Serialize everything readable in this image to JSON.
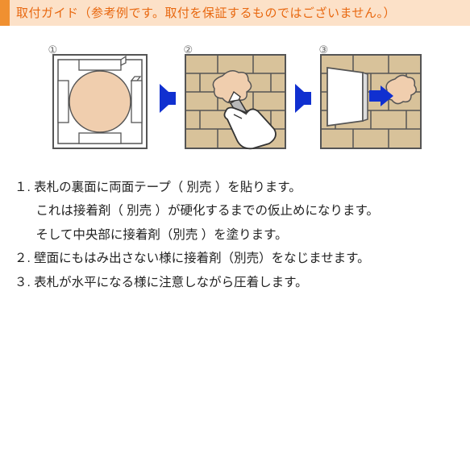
{
  "header": {
    "bar_color": "#f09030",
    "bg_color": "#fce1c8",
    "text_color": "#e86810",
    "text": "取付ガイド（参考例です。取付を保証するものではございません。）"
  },
  "arrow_color": "#1030d0",
  "steps": {
    "labels": [
      "①",
      "②",
      "③"
    ],
    "panel_size": 132,
    "colors": {
      "plate_stroke": "#555555",
      "plate_fill": "#ffffff",
      "adhesive_fill": "#f0ceae",
      "tape_fill": "#ffffff",
      "tape_stroke": "#555555",
      "brick_fill": "#d8c29a",
      "brick_stroke": "#555555",
      "hand_fill": "#ffffff",
      "hand_stroke": "#333333",
      "tube_fill": "#b8b8b8",
      "tube_stroke": "#333333",
      "small_arrow": "#1030d0"
    }
  },
  "instructions": {
    "lines": [
      {
        "num": "１.",
        "text": "表札の裏面に両面テープ（ 別売 ）を貼ります。"
      },
      {
        "indent": true,
        "text": "これは接着剤（ 別売 ）が硬化するまでの仮止めになります。"
      },
      {
        "indent": true,
        "text": "そして中央部に接着剤（別売 ）を塗ります。"
      },
      {
        "num": "２.",
        "text": "壁面にもはみ出さない様に接着剤（別売）をなじませます。"
      },
      {
        "num": "３.",
        "text": "表札が水平になる様に注意しながら圧着します。"
      }
    ]
  }
}
